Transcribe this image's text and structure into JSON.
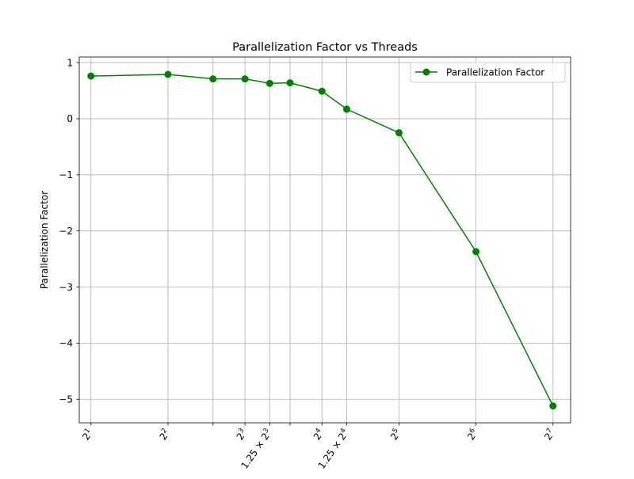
{
  "chart_data": {
    "type": "line",
    "title": "Parallelization Factor vs Threads",
    "xlabel": "",
    "ylabel": "Parallelization Factor",
    "x_scale": "log2",
    "xlim": [
      1.8,
      150
    ],
    "ylim": [
      -5.42,
      1.1
    ],
    "y_ticks": [
      1,
      0,
      -1,
      -2,
      -3,
      -4,
      -5
    ],
    "y_tick_labels": [
      "1",
      "0",
      "−1",
      "−2",
      "−3",
      "−4",
      "−5"
    ],
    "x_ticks": [
      {
        "value": 2,
        "base": "2",
        "exp": "1"
      },
      {
        "value": 4,
        "base": "2",
        "exp": "2"
      },
      {
        "value": 6,
        "base": "",
        "exp": ""
      },
      {
        "value": 8,
        "base": "2",
        "exp": "3"
      },
      {
        "value": 10,
        "base": "1.25 × 2",
        "exp": "3"
      },
      {
        "value": 12,
        "base": "",
        "exp": ""
      },
      {
        "value": 16,
        "base": "2",
        "exp": "4"
      },
      {
        "value": 20,
        "base": "1.25 × 2",
        "exp": "4"
      },
      {
        "value": 32,
        "base": "2",
        "exp": "5"
      },
      {
        "value": 64,
        "base": "2",
        "exp": "6"
      },
      {
        "value": 128,
        "base": "2",
        "exp": "7"
      }
    ],
    "grid": true,
    "legend_position": "upper-right",
    "series": [
      {
        "name": "Parallelization Factor",
        "color": "#008000",
        "marker": "circle",
        "x": [
          2,
          4,
          6,
          8,
          10,
          12,
          16,
          20,
          32,
          64,
          128
        ],
        "y": [
          0.76,
          0.79,
          0.71,
          0.71,
          0.63,
          0.64,
          0.49,
          0.17,
          -0.25,
          -2.37,
          -5.12
        ]
      }
    ]
  }
}
